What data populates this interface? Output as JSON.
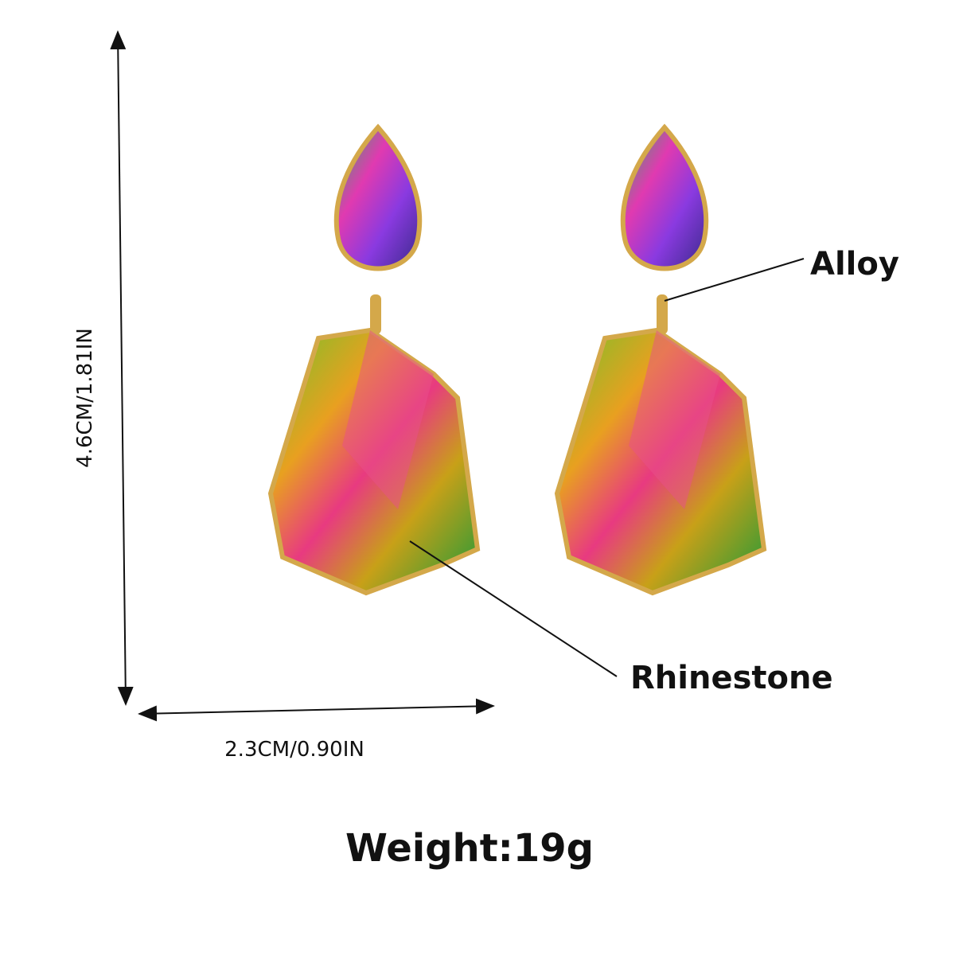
{
  "dimensions": {
    "height": "4.6CM/1.81IN",
    "width": "2.3CM/0.90IN"
  },
  "callouts": {
    "alloy": "Alloy",
    "rhinestone": "Rhinestone"
  },
  "weight": "Weight:19g"
}
